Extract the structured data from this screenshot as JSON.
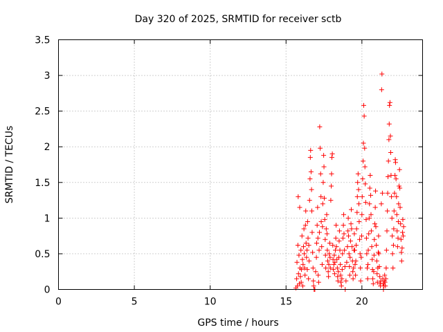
{
  "chart_data": {
    "type": "scatter",
    "title": "Day 320 of 2025, SRMTID for receiver sctb",
    "xlabel": "GPS time / hours",
    "ylabel": "SRMTID / TECUs",
    "xlim": [
      0,
      24
    ],
    "ylim": [
      0,
      3.5
    ],
    "x_ticks": [
      0,
      5,
      10,
      15,
      20
    ],
    "x_tick_labels": [
      "0",
      "5",
      "10",
      "15",
      "20"
    ],
    "y_ticks": [
      0,
      0.5,
      1,
      1.5,
      2,
      2.5,
      3,
      3.5
    ],
    "y_tick_labels": [
      "0",
      "0.5",
      "1",
      "1.5",
      "2",
      "2.5",
      "3",
      "3.5"
    ],
    "grid": true,
    "marker": "plus",
    "color": "#ff0000",
    "series": [
      {
        "name": "SRMTID",
        "points": [
          [
            15.65,
            0.02
          ],
          [
            15.7,
            0.15
          ],
          [
            15.72,
            0.38
          ],
          [
            15.75,
            0.05
          ],
          [
            15.78,
            0.62
          ],
          [
            15.8,
            1.3
          ],
          [
            15.82,
            0.22
          ],
          [
            15.85,
            0.48
          ],
          [
            15.88,
            0.08
          ],
          [
            15.9,
            1.15
          ],
          [
            15.92,
            0.3
          ],
          [
            15.95,
            0.18
          ],
          [
            15.98,
            0.55
          ],
          [
            16.0,
            0.1
          ],
          [
            16.02,
            0.28
          ],
          [
            16.05,
            0.75
          ],
          [
            16.08,
            0.42
          ],
          [
            16.1,
            0.05
          ],
          [
            16.12,
            0.35
          ],
          [
            16.15,
            0.6
          ],
          [
            16.18,
            0.85
          ],
          [
            16.2,
            0.5
          ],
          [
            16.22,
            0.3
          ],
          [
            16.25,
            0.2
          ],
          [
            16.28,
            0.9
          ],
          [
            16.3,
            1.1
          ],
          [
            16.32,
            0.65
          ],
          [
            16.35,
            0.45
          ],
          [
            16.38,
            0.55
          ],
          [
            16.4,
            0.28
          ],
          [
            16.42,
            0.95
          ],
          [
            16.45,
            0.72
          ],
          [
            16.48,
            0.15
          ],
          [
            16.5,
            0.62
          ],
          [
            16.52,
            0.4
          ],
          [
            16.55,
            1.25
          ],
          [
            16.58,
            1.55
          ],
          [
            16.6,
            1.85
          ],
          [
            16.62,
            1.95
          ],
          [
            16.65,
            1.65
          ],
          [
            16.68,
            1.4
          ],
          [
            16.7,
            1.1
          ],
          [
            16.72,
            0.8
          ],
          [
            16.75,
            0.52
          ],
          [
            16.78,
            0.3
          ],
          [
            16.8,
            0.12
          ],
          [
            16.82,
            0.05
          ],
          [
            16.85,
            0.0
          ],
          [
            16.9,
            0.0
          ],
          [
            16.95,
            0.25
          ],
          [
            17.0,
            0.45
          ],
          [
            17.02,
            0.65
          ],
          [
            17.05,
            0.9
          ],
          [
            17.08,
            1.15
          ],
          [
            17.1,
            0.72
          ],
          [
            17.12,
            0.2
          ],
          [
            17.15,
            0.1
          ],
          [
            17.18,
            0.55
          ],
          [
            17.2,
            0.8
          ],
          [
            17.22,
            2.28
          ],
          [
            17.25,
            1.98
          ],
          [
            17.28,
            1.62
          ],
          [
            17.3,
            1.3
          ],
          [
            17.32,
            0.95
          ],
          [
            17.35,
            0.6
          ],
          [
            17.38,
            0.35
          ],
          [
            17.4,
            0.88
          ],
          [
            17.42,
            1.2
          ],
          [
            17.45,
            1.5
          ],
          [
            17.48,
            1.88
          ],
          [
            17.5,
            1.72
          ],
          [
            17.52,
            1.28
          ],
          [
            17.55,
            0.98
          ],
          [
            17.58,
            0.7
          ],
          [
            17.6,
            0.48
          ],
          [
            17.62,
            0.3
          ],
          [
            17.65,
            0.85
          ],
          [
            17.68,
            1.05
          ],
          [
            17.7,
            0.78
          ],
          [
            17.72,
            0.55
          ],
          [
            17.75,
            0.4
          ],
          [
            17.78,
            0.25
          ],
          [
            17.8,
            0.18
          ],
          [
            17.82,
            0.35
          ],
          [
            17.85,
            0.5
          ],
          [
            17.88,
            0.65
          ],
          [
            17.9,
            0.45
          ],
          [
            17.92,
            0.3
          ],
          [
            17.95,
            1.25
          ],
          [
            17.98,
            1.45
          ],
          [
            18.0,
            1.62
          ],
          [
            18.02,
            1.85
          ],
          [
            18.05,
            1.9
          ],
          [
            18.08,
            0.62
          ],
          [
            18.1,
            0.42
          ],
          [
            18.12,
            0.28
          ],
          [
            18.15,
            0.35
          ],
          [
            18.18,
            0.48
          ],
          [
            18.2,
            0.22
          ],
          [
            18.22,
            0.38
          ],
          [
            18.25,
            0.55
          ],
          [
            18.28,
            0.72
          ],
          [
            18.3,
            0.9
          ],
          [
            18.32,
            0.6
          ],
          [
            18.35,
            0.42
          ],
          [
            18.38,
            0.3
          ],
          [
            18.4,
            0.18
          ],
          [
            18.42,
            0.12
          ],
          [
            18.45,
            0.25
          ],
          [
            18.48,
            0.45
          ],
          [
            18.5,
            0.68
          ],
          [
            18.52,
            0.82
          ],
          [
            18.55,
            0.55
          ],
          [
            18.58,
            0.35
          ],
          [
            18.6,
            0.2
          ],
          [
            18.62,
            0.1
          ],
          [
            18.65,
            0.05
          ],
          [
            18.68,
            0.15
          ],
          [
            18.7,
            0.28
          ],
          [
            18.72,
            0.5
          ],
          [
            18.75,
            0.72
          ],
          [
            18.78,
            0.9
          ],
          [
            18.8,
            1.05
          ],
          [
            18.82,
            0.78
          ],
          [
            18.85,
            0.55
          ],
          [
            18.88,
            0.32
          ],
          [
            18.9,
            0.0
          ],
          [
            18.95,
            0.12
          ],
          [
            19.0,
            0.38
          ],
          [
            19.05,
            0.6
          ],
          [
            19.08,
            0.82
          ],
          [
            19.1,
            1.0
          ],
          [
            19.12,
            0.75
          ],
          [
            19.15,
            0.5
          ],
          [
            19.18,
            0.32
          ],
          [
            19.2,
            0.2
          ],
          [
            19.22,
            0.45
          ],
          [
            19.25,
            0.68
          ],
          [
            19.28,
            0.92
          ],
          [
            19.3,
            1.12
          ],
          [
            19.32,
            0.85
          ],
          [
            19.35,
            0.6
          ],
          [
            19.38,
            0.4
          ],
          [
            19.4,
            0.25
          ],
          [
            19.42,
            0.15
          ],
          [
            19.45,
            0.3
          ],
          [
            19.48,
            0.55
          ],
          [
            19.5,
            0.78
          ],
          [
            19.52,
            0.55
          ],
          [
            19.55,
            0.35
          ],
          [
            19.58,
            0.2
          ],
          [
            19.6,
            0.4
          ],
          [
            19.62,
            0.62
          ],
          [
            19.65,
            0.85
          ],
          [
            19.68,
            1.08
          ],
          [
            19.7,
            1.3
          ],
          [
            19.72,
            1.5
          ],
          [
            19.75,
            1.62
          ],
          [
            19.78,
            1.4
          ],
          [
            19.8,
            1.2
          ],
          [
            19.82,
            0.95
          ],
          [
            19.85,
            0.7
          ],
          [
            19.88,
            0.5
          ],
          [
            19.9,
            0.3
          ],
          [
            19.92,
            0.12
          ],
          [
            19.95,
            0.45
          ],
          [
            19.98,
            0.75
          ],
          [
            20.0,
            1.05
          ],
          [
            20.02,
            1.3
          ],
          [
            20.05,
            1.55
          ],
          [
            20.08,
            1.8
          ],
          [
            20.1,
            2.05
          ],
          [
            20.12,
            2.58
          ],
          [
            20.15,
            2.43
          ],
          [
            20.18,
            1.98
          ],
          [
            20.2,
            1.72
          ],
          [
            20.22,
            1.48
          ],
          [
            20.25,
            1.22
          ],
          [
            20.28,
            0.98
          ],
          [
            20.3,
            0.72
          ],
          [
            20.32,
            0.5
          ],
          [
            20.35,
            0.3
          ],
          [
            20.38,
            0.15
          ],
          [
            20.4,
            0.35
          ],
          [
            20.42,
            0.55
          ],
          [
            20.45,
            0.78
          ],
          [
            20.48,
            1.0
          ],
          [
            20.5,
            1.2
          ],
          [
            20.52,
            1.42
          ],
          [
            20.55,
            1.6
          ],
          [
            20.58,
            1.32
          ],
          [
            20.6,
            1.05
          ],
          [
            20.62,
            0.82
          ],
          [
            20.65,
            0.6
          ],
          [
            20.68,
            0.42
          ],
          [
            20.7,
            0.28
          ],
          [
            20.72,
            0.15
          ],
          [
            20.75,
            0.08
          ],
          [
            20.78,
            0.25
          ],
          [
            20.8,
            0.48
          ],
          [
            20.82,
            0.7
          ],
          [
            20.85,
            0.92
          ],
          [
            20.88,
            1.15
          ],
          [
            20.9,
            1.38
          ],
          [
            20.92,
            0.88
          ],
          [
            20.95,
            0.62
          ],
          [
            20.98,
            0.4
          ],
          [
            21.0,
            0.22
          ],
          [
            21.02,
            0.1
          ],
          [
            21.05,
            0.3
          ],
          [
            21.08,
            0.52
          ],
          [
            21.1,
            0.75
          ],
          [
            21.12,
            0.5
          ],
          [
            21.15,
            0.32
          ],
          [
            21.18,
            0.18
          ],
          [
            21.2,
            0.08
          ],
          [
            21.22,
            0.05
          ],
          [
            21.25,
            0.12
          ],
          [
            21.28,
            1.2
          ],
          [
            21.3,
            2.8
          ],
          [
            21.32,
            3.02
          ],
          [
            21.35,
            1.35
          ],
          [
            21.38,
            0.15
          ],
          [
            21.4,
            0.08
          ],
          [
            21.42,
            0.0
          ],
          [
            21.45,
            0.05
          ],
          [
            21.48,
            0.12
          ],
          [
            21.5,
            0.2
          ],
          [
            21.52,
            0.1
          ],
          [
            21.55,
            0.05
          ],
          [
            21.58,
            0.15
          ],
          [
            21.6,
            0.3
          ],
          [
            21.62,
            0.55
          ],
          [
            21.65,
            0.82
          ],
          [
            21.68,
            1.1
          ],
          [
            21.7,
            1.35
          ],
          [
            21.72,
            1.58
          ],
          [
            21.75,
            1.8
          ],
          [
            21.78,
            2.1
          ],
          [
            21.8,
            2.32
          ],
          [
            21.82,
            2.58
          ],
          [
            21.85,
            2.62
          ],
          [
            21.88,
            2.15
          ],
          [
            21.9,
            1.92
          ],
          [
            21.92,
            1.6
          ],
          [
            21.95,
            1.3
          ],
          [
            21.98,
            1.0
          ],
          [
            22.0,
            0.75
          ],
          [
            22.02,
            0.5
          ],
          [
            22.05,
            0.3
          ],
          [
            22.08,
            0.62
          ],
          [
            22.1,
            0.85
          ],
          [
            22.12,
            1.1
          ],
          [
            22.15,
            1.35
          ],
          [
            22.18,
            1.6
          ],
          [
            22.2,
            1.82
          ],
          [
            22.22,
            1.78
          ],
          [
            22.25,
            1.55
          ],
          [
            22.28,
            1.3
          ],
          [
            22.3,
            1.05
          ],
          [
            22.32,
            0.82
          ],
          [
            22.35,
            0.6
          ],
          [
            22.38,
            0.72
          ],
          [
            22.4,
            0.95
          ],
          [
            22.42,
            1.2
          ],
          [
            22.45,
            1.45
          ],
          [
            22.48,
            1.68
          ],
          [
            22.5,
            1.42
          ],
          [
            22.52,
            1.15
          ],
          [
            22.55,
            0.92
          ],
          [
            22.58,
            0.7
          ],
          [
            22.6,
            0.52
          ],
          [
            22.62,
            0.4
          ],
          [
            22.65,
            0.58
          ],
          [
            22.68,
            0.8
          ],
          [
            22.7,
            0.98
          ],
          [
            22.72,
            0.75
          ],
          [
            22.75,
            0.88
          ]
        ]
      }
    ]
  }
}
